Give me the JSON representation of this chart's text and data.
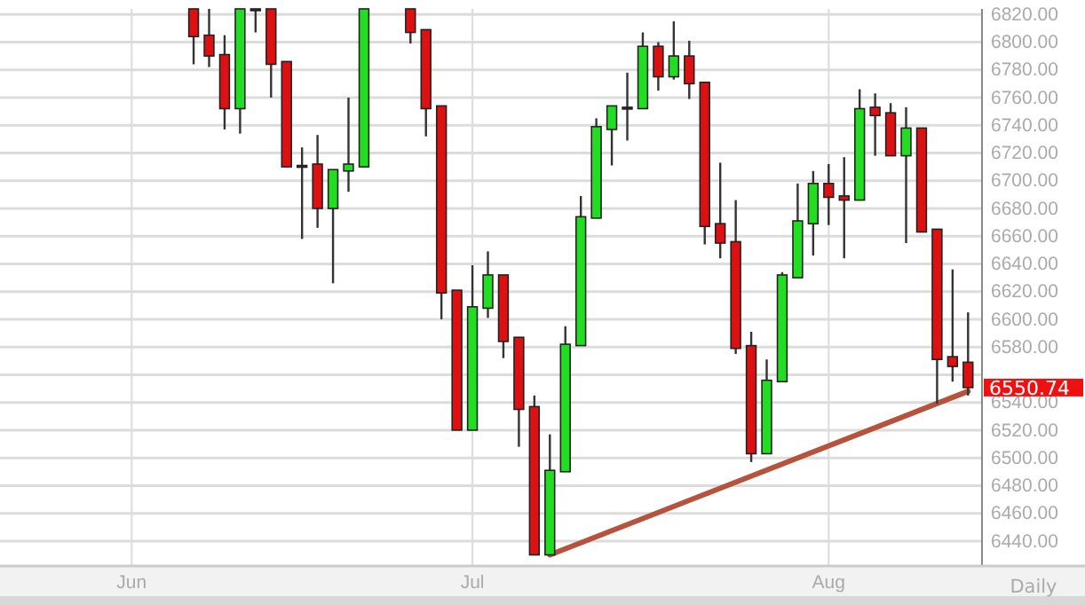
{
  "chart_data": {
    "type": "candlestick",
    "categories": [
      null,
      null,
      null,
      null,
      null,
      null,
      null,
      null,
      "Jun",
      null,
      null,
      null,
      null,
      null,
      null,
      null,
      null,
      null,
      null,
      null,
      null,
      null,
      null,
      null,
      null,
      null,
      null,
      null,
      null,
      null,
      "Jul",
      null,
      null,
      null,
      null,
      null,
      null,
      null,
      null,
      null,
      null,
      null,
      null,
      null,
      null,
      null,
      null,
      null,
      null,
      null,
      null,
      null,
      null,
      "Aug",
      null,
      null,
      null,
      null,
      null,
      null,
      null,
      null,
      null
    ],
    "ohlc": [
      null,
      null,
      null,
      null,
      null,
      null,
      null,
      null,
      null,
      null,
      null,
      null,
      [
        6824,
        6824,
        6784,
        6804
      ],
      [
        6805,
        6824,
        6782,
        6790
      ],
      [
        6791,
        6805,
        6737,
        6752
      ],
      [
        6752,
        6824,
        6734,
        6824
      ],
      [
        6824,
        6824,
        6807,
        6824
      ],
      [
        6824,
        6824,
        6760,
        6784
      ],
      [
        6786,
        6786,
        6710,
        6710
      ],
      [
        6711,
        6724,
        6658,
        6711
      ],
      [
        6712,
        6733,
        6666,
        6680
      ],
      [
        6680,
        6708,
        6626,
        6708
      ],
      [
        6707,
        6760,
        6692,
        6712
      ],
      [
        6710,
        6824,
        6710,
        6824
      ],
      null,
      null,
      [
        6824,
        6824,
        6799,
        6807
      ],
      [
        6809,
        6809,
        6732,
        6752
      ],
      [
        6754,
        6754,
        6600,
        6619
      ],
      [
        6621,
        6621,
        6520,
        6520
      ],
      [
        6520,
        6639,
        6520,
        6609
      ],
      [
        6608,
        6649,
        6601,
        6632
      ],
      [
        6632,
        6632,
        6572,
        6584
      ],
      [
        6587,
        6587,
        6508,
        6535
      ],
      [
        6537,
        6545,
        6430,
        6430
      ],
      [
        6430,
        6517,
        6430,
        6491
      ],
      [
        6490,
        6595,
        6490,
        6582
      ],
      [
        6581,
        6689,
        6581,
        6674
      ],
      [
        6673,
        6745,
        6673,
        6739
      ],
      [
        6737,
        6754,
        6711,
        6754
      ],
      [
        6753,
        6778,
        6729,
        6753
      ],
      [
        6752,
        6807,
        6752,
        6797
      ],
      [
        6797,
        6800,
        6765,
        6775
      ],
      [
        6775,
        6815,
        6773,
        6790
      ],
      [
        6790,
        6801,
        6759,
        6770
      ],
      [
        6771,
        6771,
        6654,
        6667
      ],
      [
        6669,
        6713,
        6644,
        6655
      ],
      [
        6656,
        6686,
        6575,
        6579
      ],
      [
        6581,
        6591,
        6497,
        6503
      ],
      [
        6503,
        6571,
        6503,
        6556
      ],
      [
        6555,
        6634,
        6555,
        6632
      ],
      [
        6630,
        6698,
        6630,
        6671
      ],
      [
        6669,
        6707,
        6646,
        6698
      ],
      [
        6698,
        6712,
        6668,
        6688
      ],
      [
        6689,
        6717,
        6644,
        6686
      ],
      [
        6686,
        6766,
        6686,
        6752
      ],
      [
        6753,
        6763,
        6718,
        6747
      ],
      [
        6749,
        6756,
        6718,
        6718
      ],
      [
        6718,
        6753,
        6655,
        6738
      ],
      [
        6738,
        6738,
        6663,
        6663
      ],
      [
        6665,
        6665,
        6539,
        6571
      ],
      [
        6573,
        6636,
        6555,
        6566
      ],
      [
        6569,
        6605,
        6545,
        6550.74
      ]
    ],
    "colors": [
      null,
      null,
      null,
      null,
      null,
      null,
      null,
      null,
      null,
      null,
      null,
      null,
      "#dd1111",
      "#dd1111",
      "#dd1111",
      "#22dd22",
      "#333333",
      "#dd1111",
      "#dd1111",
      "#333333",
      "#dd1111",
      "#22dd22",
      "#22dd22",
      "#22dd22",
      null,
      null,
      "#dd1111",
      "#dd1111",
      "#dd1111",
      "#dd1111",
      "#22dd22",
      "#22dd22",
      "#dd1111",
      "#dd1111",
      "#dd1111",
      "#22dd22",
      "#22dd22",
      "#22dd22",
      "#22dd22",
      "#22dd22",
      "#333333",
      "#22dd22",
      "#dd1111",
      "#22dd22",
      "#dd1111",
      "#dd1111",
      "#dd1111",
      "#dd1111",
      "#dd1111",
      "#22dd22",
      "#22dd22",
      "#22dd22",
      "#22dd22",
      "#dd1111",
      "#dd1111",
      "#22dd22",
      "#dd1111",
      "#dd1111",
      "#22dd22",
      "#dd1111",
      "#dd1111",
      "#dd1111",
      "#dd1111"
    ],
    "value_labels": [
      null,
      null,
      null,
      null,
      null,
      null,
      null,
      null,
      null,
      null,
      null,
      null,
      null,
      null,
      null,
      null,
      null,
      null,
      null,
      null,
      null,
      null,
      null,
      null,
      null,
      null,
      null,
      null,
      null,
      null,
      null,
      null,
      null,
      null,
      null,
      null,
      null,
      null,
      null,
      null,
      null,
      null,
      null,
      null,
      null,
      null,
      null,
      null,
      null,
      null,
      null,
      null,
      null,
      null,
      null,
      null,
      null,
      null,
      null,
      null,
      null,
      null,
      "6550.74"
    ],
    "series": [
      {
        "type": "line",
        "values": [
          null,
          null,
          null,
          null,
          null,
          null,
          null,
          null,
          null,
          null,
          null,
          null,
          null,
          null,
          null,
          null,
          null,
          null,
          null,
          null,
          null,
          null,
          null,
          null,
          null,
          null,
          null,
          null,
          null,
          null,
          null,
          null,
          null,
          null,
          null,
          6430,
          null,
          null,
          null,
          null,
          null,
          null,
          null,
          null,
          null,
          null,
          null,
          null,
          null,
          null,
          null,
          null,
          null,
          null,
          null,
          null,
          null,
          null,
          null,
          null,
          null,
          null,
          6548
        ],
        "color": "#b5533c"
      }
    ],
    "ylim": [
      6422,
      6824
    ],
    "yticks": [
      {
        "value": 6440,
        "label": "6440.00"
      },
      {
        "value": 6460,
        "label": "6460.00"
      },
      {
        "value": 6480,
        "label": "6480.00"
      },
      {
        "value": 6500,
        "label": "6500.00"
      },
      {
        "value": 6520,
        "label": "6520.00"
      },
      {
        "value": 6540,
        "label": "6540.00"
      },
      {
        "value": 6560,
        "label": null
      },
      {
        "value": 6580,
        "label": "6580.00"
      },
      {
        "value": 6600,
        "label": "6600.00"
      },
      {
        "value": 6620,
        "label": "6620.00"
      },
      {
        "value": 6640,
        "label": "6640.00"
      },
      {
        "value": 6660,
        "label": "6660.00"
      },
      {
        "value": 6680,
        "label": "6680.00"
      },
      {
        "value": 6700,
        "label": "6700.00"
      },
      {
        "value": 6720,
        "label": "6720.00"
      },
      {
        "value": 6740,
        "label": "6740.00"
      },
      {
        "value": 6760,
        "label": "6760.00"
      },
      {
        "value": 6780,
        "label": "6780.00"
      },
      {
        "value": 6800,
        "label": "6800.00"
      },
      {
        "value": 6820,
        "label": "6820.00"
      }
    ],
    "grid": true,
    "annotations": [
      "Daily"
    ]
  }
}
